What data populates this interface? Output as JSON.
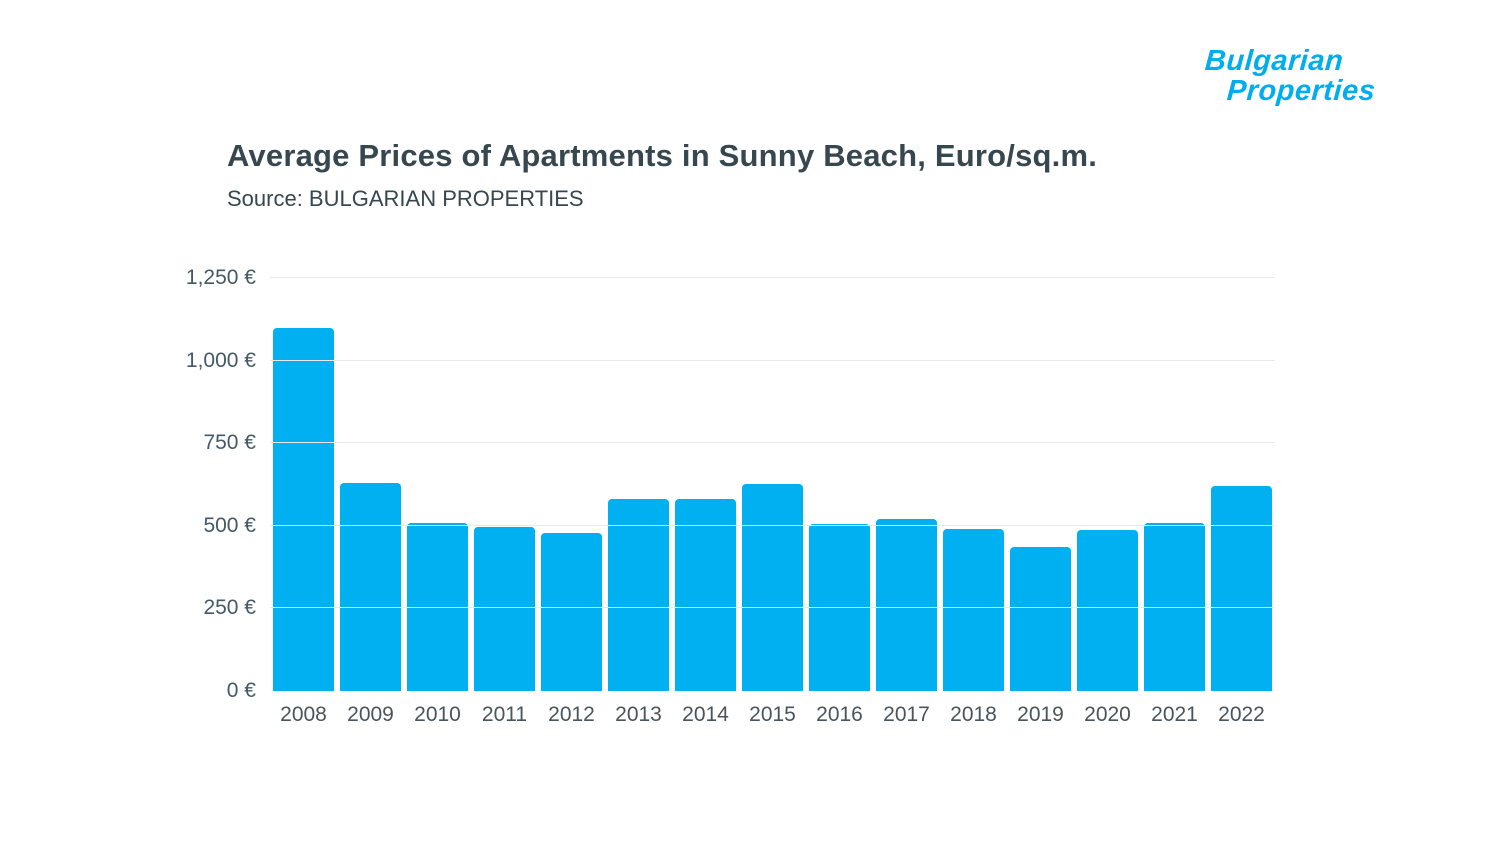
{
  "logo": {
    "line1": "Bulgarian",
    "line2": "Properties",
    "color": "#00aeef"
  },
  "header": {
    "title": "Average Prices of Apartments in Sunny Beach, Euro/sq.m.",
    "source": "Source: BULGARIAN PROPERTIES",
    "title_color": "#37474f"
  },
  "chart_data": {
    "type": "bar",
    "title": "Average Prices of Apartments in Sunny Beach, Euro/sq.m.",
    "subtitle": "Source: BULGARIAN PROPERTIES",
    "categories": [
      "2008",
      "2009",
      "2010",
      "2011",
      "2012",
      "2013",
      "2014",
      "2015",
      "2016",
      "2017",
      "2018",
      "2019",
      "2020",
      "2021",
      "2022"
    ],
    "values": [
      1100,
      630,
      510,
      495,
      478,
      580,
      582,
      627,
      505,
      520,
      490,
      435,
      488,
      508,
      620
    ],
    "xlabel": "",
    "ylabel": "",
    "ylim": [
      0,
      1250
    ],
    "yticks": [
      {
        "value": 0,
        "label": "0 €"
      },
      {
        "value": 250,
        "label": "250 €"
      },
      {
        "value": 500,
        "label": "500 €"
      },
      {
        "value": 750,
        "label": "750 €"
      },
      {
        "value": 1000,
        "label": "1,000 €"
      },
      {
        "value": 1250,
        "label": "1,250 €"
      }
    ],
    "bar_color": "#00b0f0",
    "grid_color": "#e9e9e9",
    "grid": true,
    "legend_position": "none"
  }
}
